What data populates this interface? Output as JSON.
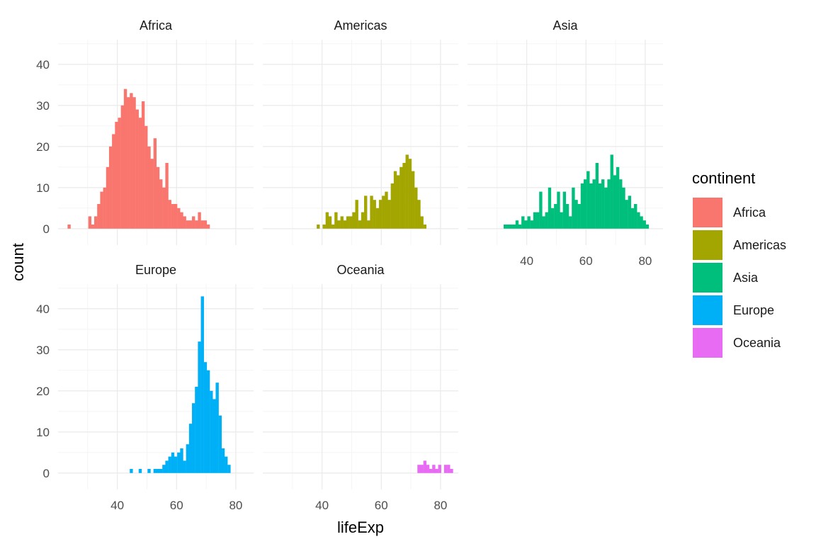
{
  "chart_data": {
    "type": "bar",
    "subtype": "faceted-histogram",
    "facet_by": "continent",
    "xlabel": "lifeExp",
    "ylabel": "count",
    "xlim": [
      20,
      86
    ],
    "ylim": [
      -4,
      46
    ],
    "x_ticks": [
      40,
      60,
      80
    ],
    "y_ticks": [
      0,
      10,
      20,
      30,
      40
    ],
    "grid": true,
    "legend": {
      "title": "continent",
      "placement": "right",
      "entries": [
        "Africa",
        "Americas",
        "Asia",
        "Europe",
        "Oceania"
      ]
    },
    "colors": {
      "Africa": "#F8766D",
      "Americas": "#A3A500",
      "Asia": "#00BF7D",
      "Europe": "#00B0F6",
      "Oceania": "#E76BF3"
    },
    "bin_start": 23.2,
    "bin_width": 1,
    "panels": [
      {
        "name": "Africa",
        "counts": [
          1,
          0,
          0,
          0,
          0,
          0,
          0,
          3,
          1,
          3,
          6,
          9,
          10,
          15,
          20,
          23,
          26,
          27,
          30,
          34,
          32,
          33,
          32,
          29,
          27,
          31,
          25,
          20,
          17,
          22,
          15,
          12,
          10,
          16,
          7,
          6,
          6,
          5,
          4,
          3,
          2,
          2,
          3,
          2,
          4,
          2,
          2,
          1,
          0,
          0
        ]
      },
      {
        "name": "Americas",
        "counts": [
          0,
          0,
          0,
          0,
          0,
          0,
          0,
          0,
          0,
          0,
          0,
          0,
          0,
          0,
          0,
          1,
          0,
          1,
          4,
          3,
          1,
          4,
          2,
          3,
          2,
          3,
          3,
          4,
          7,
          2,
          4,
          8,
          2,
          8,
          7,
          5,
          7,
          8,
          9,
          7,
          11,
          14,
          13,
          15,
          16,
          18,
          17,
          14,
          10,
          7,
          3,
          1
        ]
      },
      {
        "name": "Asia",
        "counts": [
          0,
          0,
          0,
          0,
          0,
          0,
          0,
          0,
          0,
          1,
          1,
          1,
          1,
          2,
          1,
          3,
          2,
          3,
          2,
          4,
          4,
          9,
          3,
          4,
          10,
          5,
          6,
          9,
          4,
          9,
          6,
          3,
          10,
          7,
          6,
          11,
          12,
          14,
          11,
          12,
          16,
          11,
          12,
          10,
          12,
          18,
          13,
          15,
          12,
          10,
          7,
          8,
          5,
          6,
          4,
          3,
          2,
          1
        ]
      },
      {
        "name": "Europe",
        "counts": [
          0,
          0,
          0,
          0,
          0,
          0,
          0,
          0,
          0,
          0,
          0,
          0,
          0,
          0,
          0,
          0,
          0,
          0,
          0,
          0,
          0,
          1,
          0,
          0,
          1,
          0,
          0,
          1,
          0,
          1,
          1,
          1,
          2,
          3,
          4,
          5,
          4,
          5,
          6,
          3,
          7,
          12,
          17,
          21,
          32,
          43,
          27,
          25,
          20,
          18,
          22,
          14,
          6,
          4,
          2
        ]
      },
      {
        "name": "Oceania",
        "counts": [
          0,
          0,
          0,
          0,
          0,
          0,
          0,
          0,
          0,
          0,
          0,
          0,
          0,
          0,
          0,
          0,
          0,
          0,
          0,
          0,
          0,
          0,
          0,
          0,
          0,
          0,
          0,
          0,
          0,
          0,
          0,
          0,
          0,
          0,
          0,
          0,
          0,
          0,
          0,
          0,
          0,
          0,
          0,
          0,
          0,
          0,
          0,
          0,
          0,
          2,
          2,
          3,
          2,
          1,
          2,
          1,
          2,
          0,
          2,
          2,
          1
        ]
      }
    ]
  }
}
